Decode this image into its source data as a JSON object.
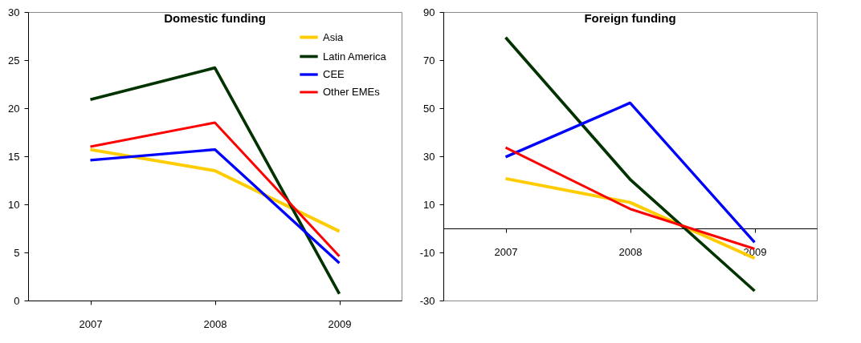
{
  "chart_data": [
    {
      "type": "line",
      "title": "Domestic funding",
      "categories": [
        "2007",
        "2008",
        "2009"
      ],
      "ylim": [
        0,
        30
      ],
      "yticks": [
        0,
        5,
        10,
        15,
        20,
        25,
        30
      ],
      "grid": false,
      "legend": "top right",
      "series": [
        {
          "name": "Asia",
          "color": "#ffcc00",
          "values": [
            15.7,
            13.5,
            7.2
          ]
        },
        {
          "name": "Latin America",
          "color": "#003300",
          "values": [
            20.9,
            24.2,
            0.7
          ]
        },
        {
          "name": "CEE",
          "color": "#0000ff",
          "values": [
            14.6,
            15.7,
            3.9
          ]
        },
        {
          "name": "Other EMEs",
          "color": "#ff0000",
          "values": [
            16.0,
            18.5,
            4.6
          ]
        }
      ]
    },
    {
      "type": "line",
      "title": "Foreign funding",
      "categories": [
        "2007",
        "2008",
        "2009"
      ],
      "ylim": [
        -30,
        90
      ],
      "yticks": [
        -30,
        -10,
        10,
        30,
        50,
        70,
        90
      ],
      "grid": false,
      "legend": false,
      "series": [
        {
          "color": "#ffcc00",
          "values": [
            20.7,
            10.8,
            -12.4
          ]
        },
        {
          "color": "#003300",
          "values": [
            79.4,
            20.4,
            -26
          ]
        },
        {
          "color": "#0000ff",
          "values": [
            29.7,
            52.2,
            -5.8
          ]
        },
        {
          "color": "#ff0000",
          "values": [
            33.6,
            8.1,
            -8.5
          ]
        }
      ]
    }
  ]
}
